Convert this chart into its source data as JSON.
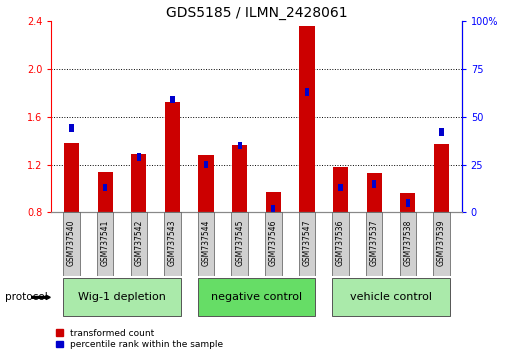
{
  "title": "GDS5185 / ILMN_2428061",
  "samples": [
    "GSM737540",
    "GSM737541",
    "GSM737542",
    "GSM737543",
    "GSM737544",
    "GSM737545",
    "GSM737546",
    "GSM737547",
    "GSM737536",
    "GSM737537",
    "GSM737538",
    "GSM737539"
  ],
  "transformed_count": [
    1.38,
    1.14,
    1.29,
    1.72,
    1.28,
    1.36,
    0.97,
    2.36,
    1.18,
    1.13,
    0.96,
    1.37
  ],
  "percentile_rank": [
    44,
    13,
    29,
    59,
    25,
    35,
    2,
    63,
    13,
    15,
    5,
    42
  ],
  "groups": [
    {
      "label": "Wig-1 depletion",
      "indices": [
        0,
        1,
        2,
        3
      ],
      "color": "#aaeaaa"
    },
    {
      "label": "negative control",
      "indices": [
        4,
        5,
        6,
        7
      ],
      "color": "#66dd66"
    },
    {
      "label": "vehicle control",
      "indices": [
        8,
        9,
        10,
        11
      ],
      "color": "#aaeaaa"
    }
  ],
  "bar_color_red": "#cc0000",
  "bar_color_blue": "#0000cc",
  "bar_width": 0.45,
  "ylim_left": [
    0.8,
    2.4
  ],
  "ylim_right": [
    0,
    100
  ],
  "yticks_left": [
    0.8,
    1.2,
    1.6,
    2.0,
    2.4
  ],
  "yticks_right": [
    0,
    25,
    50,
    75,
    100
  ],
  "ytick_labels_right": [
    "0",
    "25",
    "50",
    "75",
    "100%"
  ],
  "protocol_label": "protocol",
  "legend_red": "transformed count",
  "legend_blue": "percentile rank within the sample",
  "sample_bg_color": "#d0d0d0",
  "title_fontsize": 10,
  "tick_fontsize": 7,
  "group_label_fontsize": 8,
  "sample_label_fontsize": 5.5
}
